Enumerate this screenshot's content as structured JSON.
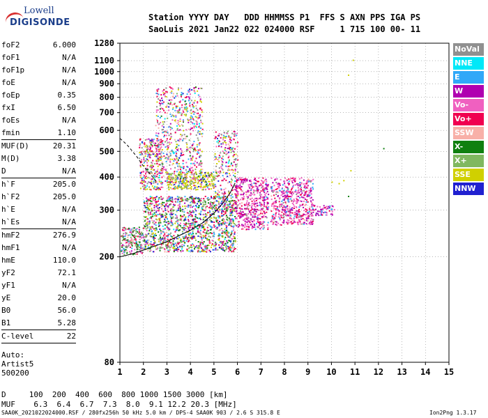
{
  "logo": {
    "top": "Lowell",
    "bottom": "DIGISONDE"
  },
  "header": {
    "line1": "Station YYYY DAY   DDD HHMMSS P1  FFS S AXN PPS IGA PS",
    "line2": "SaoLuis 2021 Jan22 022 024000 RSF     1 715 100 00- 11"
  },
  "params": {
    "group1": [
      {
        "name": "foF2",
        "value": "6.000"
      },
      {
        "name": "foF1",
        "value": "N/A"
      },
      {
        "name": "foF1p",
        "value": "N/A"
      },
      {
        "name": "foE",
        "value": "N/A"
      },
      {
        "name": "foEp",
        "value": "0.35"
      },
      {
        "name": "fxI",
        "value": "6.50"
      },
      {
        "name": "foEs",
        "value": "N/A"
      },
      {
        "name": "fmin",
        "value": "1.10"
      }
    ],
    "group2": [
      {
        "name": "MUF(D)",
        "value": "20.31"
      },
      {
        "name": "M(D)",
        "value": "3.38"
      },
      {
        "name": "D",
        "value": "N/A"
      }
    ],
    "group3": [
      {
        "name": "h`F",
        "value": "205.0"
      },
      {
        "name": "h`F2",
        "value": "205.0"
      },
      {
        "name": "h`E",
        "value": "N/A"
      },
      {
        "name": "h`Es",
        "value": "N/A"
      }
    ],
    "group4": [
      {
        "name": "hmF2",
        "value": "276.9"
      },
      {
        "name": "hmF1",
        "value": "N/A"
      },
      {
        "name": "hmE",
        "value": "110.0"
      },
      {
        "name": "yF2",
        "value": "72.1"
      },
      {
        "name": "yF1",
        "value": "N/A"
      },
      {
        "name": "yE",
        "value": "20.0"
      },
      {
        "name": "B0",
        "value": "56.0"
      },
      {
        "name": "B1",
        "value": "5.28"
      }
    ],
    "group5": [
      {
        "name": "C-level",
        "value": "22"
      }
    ]
  },
  "auto": {
    "line1": "Auto:",
    "line2": "Artist5",
    "line3": "500200"
  },
  "legend": [
    {
      "label": "NoVal",
      "color": "#909090"
    },
    {
      "label": "NNE",
      "color": "#00e8f8"
    },
    {
      "label": "E",
      "color": "#30a8f8"
    },
    {
      "label": "W",
      "color": "#b000b0"
    },
    {
      "label": "Vo-",
      "color": "#f060c0"
    },
    {
      "label": "Vo+",
      "color": "#f00050"
    },
    {
      "label": "SSW",
      "color": "#f8b0a8"
    },
    {
      "label": "X-",
      "color": "#108010"
    },
    {
      "label": "X+",
      "color": "#80b860"
    },
    {
      "label": "SSE",
      "color": "#d0d000"
    },
    {
      "label": "NNW",
      "color": "#2020d0"
    }
  ],
  "footer": {
    "d_line": "D     100  200  400  600  800 1000 1500 3000 [km]",
    "muf_line": "MUF    6.3  6.4  6.7  7.3  8.0  9.1 12.2 20.3 [MHz]",
    "filename": "SAA0K_2021022024000.RSF / 280fx256h 50 kHz 5.0 km / DPS-4 SAA0K 903 / 2.6 S 315.8 E",
    "version": "Ion2Png 1.3.17"
  },
  "chart_data": {
    "type": "scatter",
    "title": "",
    "xlabel": "",
    "ylabel": "",
    "xlim": [
      1,
      15
    ],
    "ylim": [
      80,
      1280
    ],
    "y_scale": "log",
    "x_ticks": [
      "1",
      "2",
      "3",
      "4",
      "5",
      "6",
      "7",
      "8",
      "9",
      "10",
      "11",
      "12",
      "13",
      "14",
      "15"
    ],
    "y_ticks": [
      {
        "value": 80,
        "label": "80"
      },
      {
        "value": 200,
        "label": "200"
      },
      {
        "value": 300,
        "label": "300"
      },
      {
        "value": 400,
        "label": "400"
      },
      {
        "value": 500,
        "label": "500"
      },
      {
        "value": 600,
        "label": "600"
      },
      {
        "value": 700,
        "label": "700"
      },
      {
        "value": 800,
        "label": "800"
      },
      {
        "value": 900,
        "label": "900"
      },
      {
        "value": 1000,
        "label": "1000"
      },
      {
        "value": 1100,
        "label": "1100"
      },
      {
        "value": 1280,
        "label": "1280"
      }
    ],
    "grid": "dotted",
    "legend_position": "right",
    "regions": [
      {
        "x": [
          1.0,
          2.0
        ],
        "y": [
          205,
          260
        ],
        "weights": [
          4,
          1,
          4,
          1,
          4,
          6,
          2,
          6,
          4
        ],
        "count": 220
      },
      {
        "x": [
          2.0,
          5.9
        ],
        "y": [
          210,
          340
        ],
        "weights": [
          3,
          1,
          4,
          2,
          4,
          6,
          2,
          6,
          5,
          4,
          4
        ],
        "count": 1400
      },
      {
        "x": [
          1.8,
          2.8
        ],
        "y": [
          360,
          560
        ],
        "weights": [
          3,
          1,
          3,
          2,
          4,
          5,
          3,
          1,
          2,
          4,
          1
        ],
        "count": 300
      },
      {
        "x": [
          2.5,
          4.5
        ],
        "y": [
          380,
          880
        ],
        "weights": [
          3,
          1,
          3,
          2,
          4,
          5,
          3,
          1,
          2,
          4,
          1
        ],
        "count": 650
      },
      {
        "x": [
          3.0,
          5.0
        ],
        "y": [
          360,
          420
        ],
        "weights": [
          1,
          0,
          1,
          0,
          1,
          1,
          1,
          1,
          2,
          9,
          1
        ],
        "count": 300
      },
      {
        "x": [
          5.0,
          6.0
        ],
        "y": [
          300,
          600
        ],
        "weights": [
          2,
          1,
          2,
          2,
          4,
          5,
          2,
          1,
          3,
          4,
          1
        ],
        "count": 280
      },
      {
        "x": [
          5.9,
          7.3
        ],
        "y": [
          255,
          400
        ],
        "weights": [
          1,
          0,
          1,
          5,
          6,
          5,
          1,
          0,
          0,
          0,
          0
        ],
        "count": 480
      },
      {
        "x": [
          7.4,
          9.2
        ],
        "y": [
          265,
          400
        ],
        "weights": [
          1,
          0,
          2,
          5,
          7,
          4,
          1,
          0,
          0,
          0,
          0
        ],
        "count": 560
      },
      {
        "x": [
          9.1,
          10.1
        ],
        "y": [
          288,
          315
        ],
        "weights": [
          0,
          0,
          2,
          4,
          2,
          1,
          0,
          0,
          0,
          0,
          0
        ],
        "count": 60
      }
    ],
    "isolated_points": [
      {
        "x": 10.9,
        "y": 1110,
        "color": "#d0d000"
      },
      {
        "x": 10.7,
        "y": 975,
        "color": "#d0d000"
      },
      {
        "x": 12.2,
        "y": 515,
        "color": "#108010"
      },
      {
        "x": 10.8,
        "y": 425,
        "color": "#d0d000"
      },
      {
        "x": 10.0,
        "y": 385,
        "color": "#d0d000"
      },
      {
        "x": 10.3,
        "y": 380,
        "color": "#d0d000"
      },
      {
        "x": 10.5,
        "y": 390,
        "color": "#d0d000"
      },
      {
        "x": 10.7,
        "y": 340,
        "color": "#108010"
      }
    ],
    "trace_curve": {
      "x": [
        1.0,
        1.5,
        2.0,
        2.5,
        3.0,
        3.5,
        4.0,
        4.5,
        5.0,
        5.4,
        5.7,
        5.9
      ],
      "y": [
        200,
        205,
        212,
        220,
        228,
        240,
        252,
        268,
        292,
        320,
        350,
        380
      ]
    },
    "profile_curve": {
      "x": [
        1.0,
        1.3,
        1.7,
        2.0,
        2.3,
        2.6
      ],
      "y": [
        560,
        530,
        480,
        440,
        410,
        380
      ]
    }
  }
}
